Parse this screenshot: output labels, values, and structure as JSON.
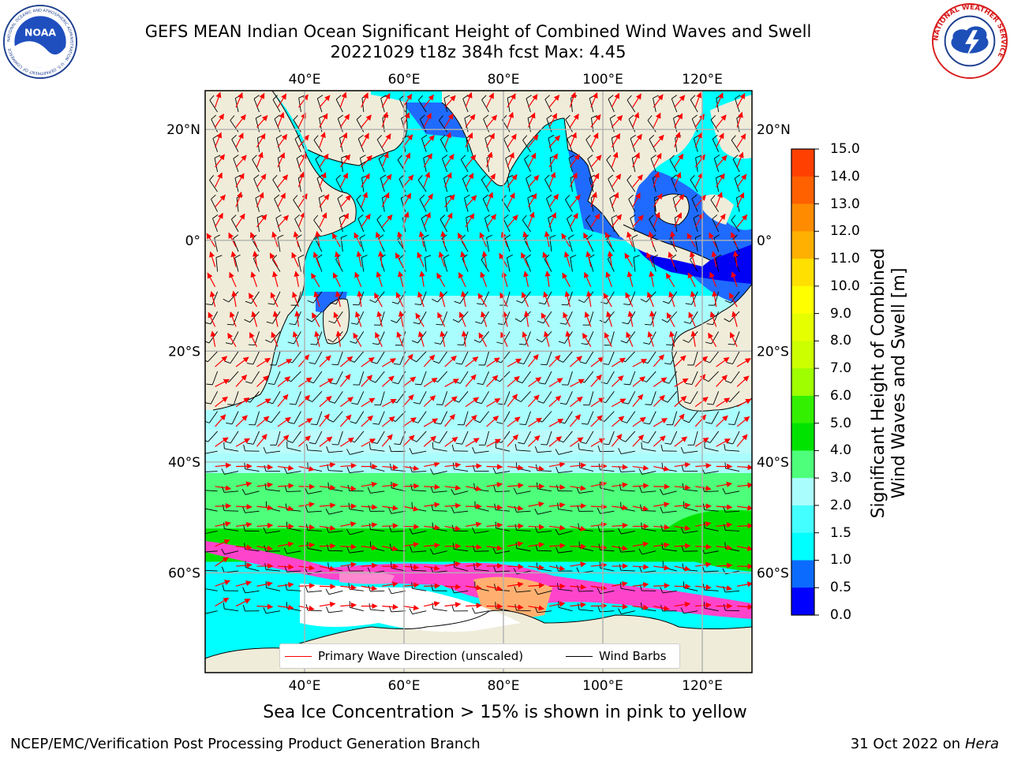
{
  "title_line1": "GEFS MEAN Indian Ocean Significant Height of Combined Wind Waves and Swell",
  "title_line2": "20221029 t18z 384h fcst   Max: 4.45",
  "logos": {
    "left": "noaa-logo",
    "left_text": "NATIONAL OCEANIC AND ATMOSPHERIC ADMINISTRATION · U.S. DEPARTMENT OF COMMERCE",
    "left_center_text": "NOAA",
    "right": "nws-logo",
    "right_text": "NATIONAL WEATHER SERVICE"
  },
  "map": {
    "lon_range": [
      20,
      130
    ],
    "lat_range": [
      -78,
      27
    ],
    "lon_ticks": [
      40,
      60,
      80,
      100,
      120
    ],
    "lon_tick_labels": [
      "40°E",
      "60°E",
      "80°E",
      "100°E",
      "120°E"
    ],
    "lat_ticks": [
      20,
      0,
      -20,
      -40,
      -60
    ],
    "lat_tick_labels": [
      "20°N",
      "0°",
      "20°S",
      "40°S",
      "60°S"
    ],
    "colors": {
      "land": "#efecd9",
      "gridline": "#b0b0b0",
      "wave_arrow": "#ff0000",
      "wind_barb": "#000000"
    },
    "wave_height_bands": [
      {
        "label": "4.0–5.0 m",
        "lat_min": -58,
        "lat_max": -52,
        "color": "#00e300"
      },
      {
        "label": "3.0–4.0 m",
        "lat_min": -56,
        "lat_max": -42,
        "color": "#4dff7a"
      },
      {
        "label": "2.0–3.0 m",
        "lat_min": -42,
        "lat_max": -10,
        "color": "#aafdfd"
      },
      {
        "label": "1.5–2.0 m",
        "lat_min": -10,
        "lat_max": 25,
        "color": "#00ffff"
      },
      {
        "label": "0.5–1.0 m",
        "lat_min": 0,
        "lat_max": 25,
        "color": "#0b6bff"
      }
    ],
    "sea_ice_colors": [
      "#ff44cc",
      "#ff88d0",
      "#ffb070",
      "#ffff55"
    ]
  },
  "colorbar": {
    "title_line1": "Significant Height of Combined",
    "title_line2": "Wind Waves and Swell [m]",
    "tick_labels": [
      "15.0",
      "14.0",
      "13.0",
      "12.0",
      "11.0",
      "10.0",
      "9.0",
      "8.0",
      "7.0",
      "6.0",
      "5.0",
      "4.0",
      "3.0",
      "2.0",
      "1.5",
      "1.0",
      "0.5",
      "0.0"
    ],
    "colors_top_to_bottom": [
      "#ff0000",
      "#ff2000",
      "#ff4000",
      "#ff6000",
      "#ff8c00",
      "#ffb000",
      "#ffe000",
      "#ffff00",
      "#e6ff00",
      "#ccff00",
      "#9fff00",
      "#33f000",
      "#00e300",
      "#4dff7a",
      "#aafdfd",
      "#44ffff",
      "#00ffff",
      "#0b6bff",
      "#0000ff"
    ]
  },
  "legend": {
    "items": [
      {
        "label": "Primary Wave Direction (unscaled)",
        "color": "#ff0000"
      },
      {
        "label": "Wind Barbs",
        "color": "#000000"
      }
    ]
  },
  "footer_note": "Sea Ice Concentration > 15% is shown in pink to yellow",
  "footer_left": "NCEP/EMC/Verification Post Processing Product Generation Branch",
  "footer_right_prefix": "31 Oct 2022 on ",
  "footer_right_host": "Hera"
}
